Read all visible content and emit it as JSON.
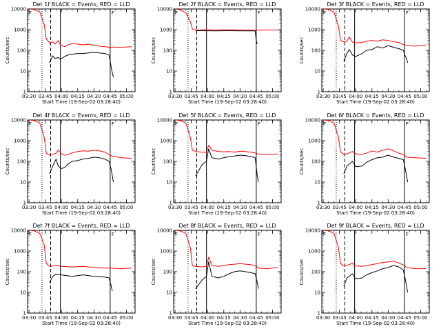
{
  "chart_data": [
    {
      "type": "line",
      "title": "Det 1f BLACK = Events, RED = LLD",
      "xlabel": "Start Time (19-Sep-02 03:28:40)",
      "ylabel": "Counts/sec",
      "flag": "F",
      "ylim": [
        1,
        10000
      ],
      "yscale": "log",
      "yticks": [
        "1",
        "10",
        "100",
        "1000",
        "10000"
      ],
      "xticks": [
        "03:30",
        "03:45",
        "04:00",
        "04:15",
        "04:30",
        "04:45",
        "05:00"
      ],
      "vlines": {
        "dotted": "03:42",
        "dashed": "03:50",
        "solid": "03:59",
        "end": "04:45"
      },
      "series": [
        {
          "color": "#ff0000",
          "x": [
            "03:30",
            "03:35",
            "03:40",
            "03:44",
            "03:46",
            "03:49",
            "03:52",
            "03:54",
            "03:57",
            "03:59",
            "04:00",
            "04:03",
            "04:06",
            "04:10",
            "04:15",
            "04:20",
            "04:25",
            "04:30",
            "04:35",
            "04:40",
            "04:45",
            "04:47",
            "04:55",
            "05:05"
          ],
          "y": [
            10000,
            9500,
            7000,
            1800,
            350,
            230,
            260,
            200,
            300,
            180,
            170,
            150,
            185,
            210,
            200,
            185,
            200,
            175,
            160,
            150,
            140,
            145,
            140,
            150
          ]
        },
        {
          "color": "#000000",
          "x": [
            "03:49",
            "03:52",
            "03:54",
            "03:57",
            "03:59",
            "04:00",
            "04:03",
            "04:06",
            "04:10",
            "04:15",
            "04:20",
            "04:25",
            "04:30",
            "04:35",
            "04:40",
            "04:44",
            "04:46",
            "04:47",
            "04:48"
          ],
          "y": [
            25,
            55,
            40,
            45,
            38,
            40,
            50,
            60,
            65,
            70,
            70,
            75,
            80,
            75,
            70,
            60,
            15,
            8,
            5
          ]
        }
      ]
    },
    {
      "type": "line",
      "title": "Det 2f BLACK = Events, RED = LLD",
      "xlabel": "Start Time (19-Sep-02 03:28:40)",
      "ylabel": "Counts/sec",
      "flag": "F",
      "ylim": [
        1,
        10000
      ],
      "yscale": "log",
      "yticks": [
        "1",
        "10",
        "100",
        "1000",
        "10000"
      ],
      "xticks": [
        "03:30",
        "03:45",
        "04:00",
        "04:15",
        "04:30",
        "04:45",
        "05:00"
      ],
      "vlines": {
        "dotted": "03:42",
        "dashed": "03:50",
        "solid": "03:59",
        "end": "04:45"
      },
      "series": [
        {
          "color": "#ff0000",
          "x": [
            "03:30",
            "03:35",
            "03:40",
            "03:44",
            "03:46",
            "03:49",
            "03:55",
            "04:05",
            "04:20",
            "04:35",
            "04:45",
            "05:05"
          ],
          "y": [
            10000,
            9000,
            6500,
            2500,
            1100,
            950,
            980,
            970,
            980,
            960,
            950,
            960
          ]
        },
        {
          "color": "#000000",
          "x": [
            "03:49",
            "03:55",
            "04:05",
            "04:20",
            "04:35",
            "04:44",
            "04:45",
            "04:46"
          ],
          "y": [
            900,
            900,
            880,
            890,
            880,
            870,
            300,
            200
          ]
        }
      ]
    },
    {
      "type": "line",
      "title": "Det 3f BLACK = Events, RED = LLD",
      "xlabel": "Start Time (19-Sep-02 03:28:40)",
      "ylabel": "Counts/sec",
      "flag": "F",
      "ylim": [
        1,
        10000
      ],
      "yscale": "log",
      "yticks": [
        "1",
        "10",
        "100",
        "1000",
        "10000"
      ],
      "xticks": [
        "03:30",
        "03:45",
        "04:00",
        "04:15",
        "04:30",
        "04:45",
        "05:00"
      ],
      "vlines": {
        "dotted": "03:42",
        "dashed": "03:50",
        "solid": "03:59",
        "end": "04:45"
      },
      "series": [
        {
          "color": "#ff0000",
          "x": [
            "03:30",
            "03:35",
            "03:40",
            "03:44",
            "03:46",
            "03:49",
            "03:52",
            "03:54",
            "03:57",
            "04:00",
            "04:06",
            "04:10",
            "04:15",
            "04:20",
            "04:25",
            "04:30",
            "04:35",
            "04:40",
            "04:45",
            "04:47",
            "04:55",
            "05:05"
          ],
          "y": [
            10000,
            9500,
            7000,
            1500,
            300,
            260,
            280,
            450,
            250,
            230,
            240,
            280,
            300,
            280,
            320,
            300,
            260,
            240,
            180,
            170,
            160,
            180
          ]
        },
        {
          "color": "#000000",
          "x": [
            "03:49",
            "03:52",
            "03:54",
            "03:57",
            "04:00",
            "04:06",
            "04:10",
            "04:15",
            "04:20",
            "04:25",
            "04:30",
            "04:35",
            "04:40",
            "04:44",
            "04:46",
            "04:47",
            "04:48"
          ],
          "y": [
            30,
            70,
            110,
            60,
            50,
            70,
            100,
            110,
            150,
            130,
            170,
            140,
            120,
            100,
            50,
            40,
            25
          ]
        }
      ]
    },
    {
      "type": "line",
      "title": "Det 4f BLACK = Events, RED = LLD",
      "xlabel": "Start Time (19-Sep-02 03:28:40)",
      "ylabel": "Counts/sec",
      "flag": "F",
      "ylim": [
        1,
        10000
      ],
      "yscale": "log",
      "yticks": [
        "1",
        "10",
        "100",
        "1000",
        "10000"
      ],
      "xticks": [
        "03:30",
        "03:45",
        "04:00",
        "04:15",
        "04:30",
        "04:45",
        "05:00"
      ],
      "vlines": {
        "dotted": "03:42",
        "dashed": "03:50",
        "solid": "03:59",
        "end": "04:45"
      },
      "series": [
        {
          "color": "#ff0000",
          "x": [
            "03:30",
            "03:35",
            "03:40",
            "03:44",
            "03:46",
            "03:49",
            "03:52",
            "03:55",
            "03:57",
            "04:00",
            "04:03",
            "04:06",
            "04:10",
            "04:15",
            "04:20",
            "04:25",
            "04:30",
            "04:35",
            "04:40",
            "04:45",
            "04:47",
            "04:55",
            "05:05"
          ],
          "y": [
            10000,
            9500,
            7000,
            1500,
            250,
            200,
            220,
            250,
            350,
            230,
            200,
            210,
            260,
            300,
            320,
            310,
            350,
            320,
            280,
            200,
            180,
            150,
            140
          ]
        },
        {
          "color": "#000000",
          "x": [
            "03:49",
            "03:52",
            "03:55",
            "03:57",
            "04:00",
            "04:03",
            "04:06",
            "04:10",
            "04:15",
            "04:20",
            "04:25",
            "04:30",
            "04:35",
            "04:40",
            "04:44",
            "04:46",
            "04:47",
            "04:48"
          ],
          "y": [
            25,
            60,
            130,
            60,
            45,
            50,
            75,
            100,
            110,
            130,
            140,
            160,
            150,
            130,
            100,
            40,
            20,
            10
          ]
        }
      ]
    },
    {
      "type": "line",
      "title": "Det 5f BLACK = Events, RED = LLD",
      "xlabel": "Start Time (19-Sep-02 03:28:40)",
      "ylabel": "Counts/sec",
      "flag": "F",
      "ylim": [
        1,
        10000
      ],
      "yscale": "log",
      "yticks": [
        "1",
        "10",
        "100",
        "1000",
        "10000"
      ],
      "xticks": [
        "03:30",
        "03:45",
        "04:00",
        "04:15",
        "04:30",
        "04:45",
        "05:00"
      ],
      "vlines": {
        "dotted": "03:42",
        "dashed": "03:50",
        "solid": "03:59",
        "end": "04:45"
      },
      "series": [
        {
          "color": "#ff0000",
          "x": [
            "03:30",
            "03:35",
            "03:40",
            "03:44",
            "03:46",
            "03:49",
            "03:55",
            "03:59",
            "04:01",
            "04:04",
            "04:10",
            "04:15",
            "04:20",
            "04:25",
            "04:30",
            "04:35",
            "04:40",
            "04:45",
            "04:47",
            "04:55",
            "05:05"
          ],
          "y": [
            10000,
            9500,
            7000,
            1500,
            350,
            300,
            280,
            270,
            600,
            350,
            300,
            290,
            300,
            280,
            310,
            300,
            280,
            250,
            220,
            210,
            230
          ]
        },
        {
          "color": "#000000",
          "x": [
            "03:49",
            "03:55",
            "03:59",
            "04:01",
            "04:04",
            "04:10",
            "04:15",
            "04:20",
            "04:25",
            "04:30",
            "04:35",
            "04:40",
            "04:44",
            "04:46",
            "04:47"
          ],
          "y": [
            20,
            70,
            100,
            400,
            150,
            130,
            150,
            170,
            180,
            200,
            190,
            170,
            150,
            20,
            10
          ]
        }
      ]
    },
    {
      "type": "line",
      "title": "Det 6f BLACK = Events, RED = LLD",
      "xlabel": "Start Time (19-Sep-02 03:28:40)",
      "ylabel": "Counts/sec",
      "flag": "F",
      "ylim": [
        1,
        10000
      ],
      "yscale": "log",
      "yticks": [
        "1",
        "10",
        "100",
        "1000",
        "10000"
      ],
      "xticks": [
        "03:30",
        "03:45",
        "04:00",
        "04:15",
        "04:30",
        "04:45",
        "05:00"
      ],
      "vlines": {
        "dotted": "03:42",
        "dashed": "03:50",
        "solid": "03:59",
        "end": "04:45"
      },
      "series": [
        {
          "color": "#ff0000",
          "x": [
            "03:30",
            "03:35",
            "03:40",
            "03:44",
            "03:46",
            "03:49",
            "03:52",
            "03:57",
            "04:00",
            "04:06",
            "04:10",
            "04:15",
            "04:20",
            "04:25",
            "04:30",
            "04:35",
            "04:40",
            "04:45",
            "04:47",
            "04:55",
            "05:05"
          ],
          "y": [
            10000,
            9500,
            7000,
            1500,
            280,
            220,
            230,
            300,
            230,
            220,
            250,
            320,
            280,
            350,
            400,
            320,
            250,
            200,
            160,
            150,
            140
          ]
        },
        {
          "color": "#000000",
          "x": [
            "03:49",
            "03:52",
            "03:57",
            "04:00",
            "04:06",
            "04:10",
            "04:15",
            "04:20",
            "04:25",
            "04:30",
            "04:35",
            "04:40",
            "04:44",
            "04:46",
            "04:47",
            "04:48"
          ],
          "y": [
            25,
            60,
            100,
            55,
            60,
            90,
            120,
            150,
            160,
            200,
            160,
            140,
            120,
            40,
            20,
            10
          ]
        }
      ]
    },
    {
      "type": "line",
      "title": "Det 7f BLACK = Events, RED = LLD",
      "xlabel": "Start Time (19-Sep-02 03:28:40)",
      "ylabel": "Counts/sec",
      "flag": "F",
      "ylim": [
        1,
        10000
      ],
      "yscale": "log",
      "yticks": [
        "1",
        "10",
        "100",
        "1000",
        "10000"
      ],
      "xticks": [
        "03:30",
        "03:45",
        "04:00",
        "04:15",
        "04:30",
        "04:45",
        "05:00"
      ],
      "vlines": {
        "dotted": "03:42",
        "dashed": "03:50",
        "solid": "03:59",
        "end": "04:45"
      },
      "series": [
        {
          "color": "#ff0000",
          "x": [
            "03:30",
            "03:35",
            "03:40",
            "03:44",
            "03:46",
            "03:49",
            "03:55",
            "04:00",
            "04:10",
            "04:20",
            "04:30",
            "04:40",
            "04:45",
            "04:55",
            "05:05"
          ],
          "y": [
            10000,
            9500,
            7000,
            2000,
            250,
            180,
            200,
            180,
            170,
            180,
            160,
            150,
            150,
            140,
            150
          ]
        },
        {
          "color": "#000000",
          "x": [
            "03:49",
            "03:52",
            "03:55",
            "04:00",
            "04:10",
            "04:20",
            "04:30",
            "04:40",
            "04:44",
            "04:46",
            "04:47"
          ],
          "y": [
            30,
            60,
            75,
            70,
            60,
            70,
            60,
            55,
            50,
            20,
            12
          ]
        }
      ]
    },
    {
      "type": "line",
      "title": "Det 8f BLACK = Events, RED = LLD",
      "xlabel": "Start Time (19-Sep-02 03:28:40)",
      "ylabel": "Counts/sec",
      "flag": "F",
      "ylim": [
        1,
        10000
      ],
      "yscale": "log",
      "yticks": [
        "1",
        "10",
        "100",
        "1000",
        "10000"
      ],
      "xticks": [
        "03:30",
        "03:45",
        "04:00",
        "04:15",
        "04:30",
        "04:45",
        "05:00"
      ],
      "vlines": {
        "dotted": "03:42",
        "dashed": "03:50",
        "solid": "03:59",
        "end": "04:45"
      },
      "series": [
        {
          "color": "#ff0000",
          "x": [
            "03:30",
            "03:35",
            "03:40",
            "03:44",
            "03:46",
            "03:49",
            "03:55",
            "03:59",
            "04:01",
            "04:04",
            "04:10",
            "04:15",
            "04:20",
            "04:25",
            "04:30",
            "04:35",
            "04:40",
            "04:45",
            "04:47",
            "04:55",
            "05:05"
          ],
          "y": [
            10000,
            9500,
            7000,
            1500,
            200,
            180,
            170,
            180,
            500,
            200,
            180,
            200,
            220,
            230,
            250,
            230,
            220,
            180,
            150,
            140,
            160
          ]
        },
        {
          "color": "#000000",
          "x": [
            "03:49",
            "03:55",
            "03:59",
            "04:01",
            "04:04",
            "04:10",
            "04:15",
            "04:20",
            "04:25",
            "04:30",
            "04:35",
            "04:40",
            "04:44",
            "04:46",
            "04:47"
          ],
          "y": [
            15,
            40,
            60,
            300,
            60,
            50,
            60,
            80,
            100,
            110,
            100,
            90,
            80,
            30,
            15
          ]
        }
      ]
    },
    {
      "type": "line",
      "title": "Det 9f BLACK = Events, RED = LLD",
      "xlabel": "Start Time (19-Sep-02 03:28:40)",
      "ylabel": "Counts/sec",
      "flag": "F",
      "ylim": [
        1,
        10000
      ],
      "yscale": "log",
      "yticks": [
        "1",
        "10",
        "100",
        "1000",
        "10000"
      ],
      "xticks": [
        "03:30",
        "03:45",
        "04:00",
        "04:15",
        "04:30",
        "04:45",
        "05:00"
      ],
      "vlines": {
        "dotted": "03:42",
        "dashed": "03:50",
        "solid": "03:59",
        "end": "04:45"
      },
      "series": [
        {
          "color": "#ff0000",
          "x": [
            "03:30",
            "03:35",
            "03:40",
            "03:44",
            "03:46",
            "03:49",
            "03:52",
            "03:57",
            "04:00",
            "04:06",
            "04:10",
            "04:15",
            "04:20",
            "04:25",
            "04:30",
            "04:35",
            "04:40",
            "04:45",
            "04:47",
            "04:55",
            "05:05"
          ],
          "y": [
            10000,
            9500,
            7000,
            1500,
            250,
            190,
            200,
            260,
            190,
            180,
            200,
            220,
            250,
            280,
            300,
            320,
            260,
            200,
            160,
            140,
            140
          ]
        },
        {
          "color": "#000000",
          "x": [
            "03:49",
            "03:52",
            "03:57",
            "04:00",
            "04:06",
            "04:10",
            "04:15",
            "04:20",
            "04:25",
            "04:30",
            "04:35",
            "04:40",
            "04:44",
            "04:46",
            "04:47",
            "04:48"
          ],
          "y": [
            20,
            50,
            80,
            45,
            50,
            70,
            90,
            110,
            140,
            160,
            200,
            170,
            120,
            40,
            20,
            10
          ]
        }
      ]
    }
  ]
}
